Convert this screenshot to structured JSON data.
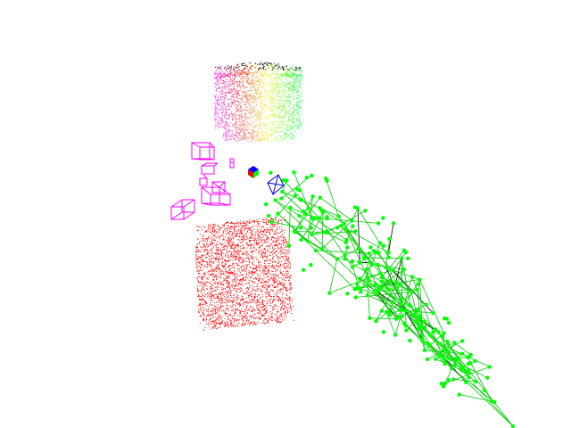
{
  "scene": {
    "background": "#ffffff",
    "objects": [
      {
        "name": "colored-point-cloud",
        "colors": [
          "#000000",
          "#ff00ff",
          "#ff8000",
          "#ffff00",
          "#00ff00",
          "#00ffff"
        ]
      },
      {
        "name": "red-point-cloud",
        "color": "#ff0000"
      },
      {
        "name": "green-node-graph",
        "node_color": "#00ff00",
        "edge_color": "#00cc00",
        "accent_edge_color": "#000000"
      },
      {
        "name": "magenta-camera-frustums",
        "color": "#ff00ff"
      },
      {
        "name": "blue-camera-frustum",
        "color": "#0000cc"
      },
      {
        "name": "rgb-axis-cube",
        "colors": [
          "#ff0000",
          "#00ff00",
          "#0000ff"
        ]
      }
    ]
  }
}
